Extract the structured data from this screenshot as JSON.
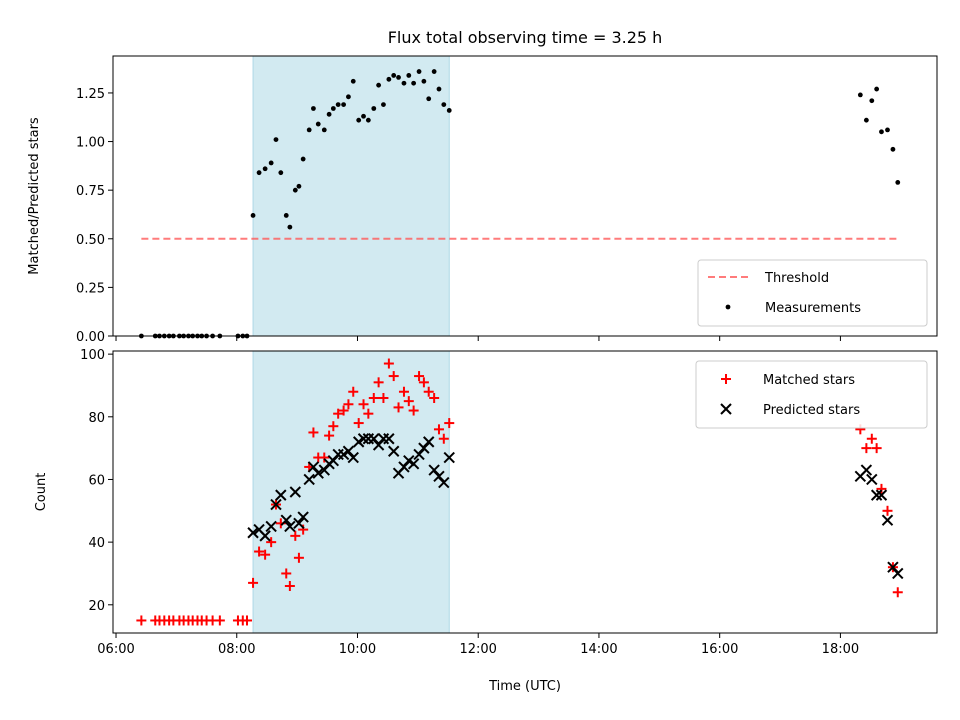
{
  "figure": {
    "title": "Flux total observing time = 3.25 h"
  },
  "colors": {
    "highlight": "#add8e6",
    "threshold": "#ff5a5a",
    "measurements": "#000000",
    "matched": "#ff0000",
    "predicted": "#000000"
  },
  "chart_data": [
    {
      "type": "scatter",
      "ylabel": "Matched/Predicted stars",
      "xlabel": "",
      "x_unit": "hours UTC",
      "xlim": [
        5.95,
        19.6
      ],
      "ylim": [
        0.0,
        1.44
      ],
      "yticks": [
        0.0,
        0.25,
        0.5,
        0.75,
        1.0,
        1.25
      ],
      "ytick_labels": [
        "0.00",
        "0.25",
        "0.50",
        "0.75",
        "1.00",
        "1.25"
      ],
      "highlight_span": [
        8.27,
        11.52
      ],
      "threshold": {
        "name": "Threshold",
        "value": 0.5,
        "x": [
          6.42,
          18.98
        ]
      },
      "legend": {
        "position": "bottom-right",
        "entries": [
          "Threshold",
          "Measurements"
        ]
      },
      "series": [
        {
          "name": "Measurements",
          "x": [
            6.42,
            6.65,
            6.72,
            6.8,
            6.88,
            6.95,
            7.05,
            7.12,
            7.2,
            7.27,
            7.35,
            7.42,
            7.5,
            7.6,
            7.72,
            8.02,
            8.1,
            8.17,
            8.27,
            8.37,
            8.47,
            8.57,
            8.65,
            8.73,
            8.82,
            8.88,
            8.97,
            9.03,
            9.1,
            9.2,
            9.27,
            9.35,
            9.45,
            9.53,
            9.6,
            9.68,
            9.77,
            9.85,
            9.93,
            10.02,
            10.1,
            10.18,
            10.27,
            10.35,
            10.43,
            10.52,
            10.6,
            10.68,
            10.77,
            10.85,
            10.93,
            11.02,
            11.1,
            11.18,
            11.27,
            11.35,
            11.43,
            11.52,
            18.33,
            18.43,
            18.52,
            18.6,
            18.68,
            18.78,
            18.87,
            18.95
          ],
          "y": [
            0,
            0,
            0,
            0,
            0,
            0,
            0,
            0,
            0,
            0,
            0,
            0,
            0,
            0,
            0,
            0,
            0,
            0,
            0.62,
            0.84,
            0.86,
            0.89,
            1.01,
            0.84,
            0.62,
            0.56,
            0.75,
            0.77,
            0.91,
            1.06,
            1.17,
            1.09,
            1.06,
            1.14,
            1.17,
            1.19,
            1.19,
            1.23,
            1.31,
            1.11,
            1.13,
            1.11,
            1.17,
            1.29,
            1.19,
            1.32,
            1.34,
            1.33,
            1.3,
            1.34,
            1.3,
            1.36,
            1.31,
            1.22,
            1.36,
            1.27,
            1.19,
            1.16,
            1.24,
            1.11,
            1.21,
            1.27,
            1.05,
            1.06,
            0.96,
            0.79
          ]
        }
      ]
    },
    {
      "type": "scatter",
      "ylabel": "Count",
      "xlabel": "Time (UTC)",
      "x_unit": "hours UTC",
      "xlim": [
        5.95,
        19.6
      ],
      "ylim": [
        11,
        101
      ],
      "yticks": [
        20,
        40,
        60,
        80,
        100
      ],
      "ytick_labels": [
        "20",
        "40",
        "60",
        "80",
        "100"
      ],
      "xticks": [
        6,
        8,
        10,
        12,
        14,
        16,
        18
      ],
      "xtick_labels": [
        "06:00",
        "08:00",
        "10:00",
        "12:00",
        "14:00",
        "16:00",
        "18:00"
      ],
      "highlight_span": [
        8.27,
        11.52
      ],
      "legend": {
        "position": "top-right",
        "entries": [
          "Matched stars",
          "Predicted stars"
        ]
      },
      "series": [
        {
          "name": "Matched stars",
          "marker": "plus",
          "x": [
            6.42,
            6.65,
            6.72,
            6.8,
            6.88,
            6.95,
            7.05,
            7.12,
            7.2,
            7.27,
            7.35,
            7.42,
            7.5,
            7.6,
            7.72,
            8.02,
            8.1,
            8.17,
            8.27,
            8.37,
            8.47,
            8.57,
            8.65,
            8.73,
            8.82,
            8.88,
            8.97,
            9.03,
            9.1,
            9.2,
            9.27,
            9.35,
            9.45,
            9.53,
            9.6,
            9.68,
            9.77,
            9.85,
            9.93,
            10.02,
            10.1,
            10.18,
            10.27,
            10.35,
            10.43,
            10.52,
            10.6,
            10.68,
            10.77,
            10.85,
            10.93,
            11.02,
            11.1,
            11.18,
            11.27,
            11.35,
            11.43,
            11.52,
            18.33,
            18.43,
            18.52,
            18.6,
            18.68,
            18.78,
            18.87,
            18.95
          ],
          "y": [
            15,
            15,
            15,
            15,
            15,
            15,
            15,
            15,
            15,
            15,
            15,
            15,
            15,
            15,
            15,
            15,
            15,
            15,
            27,
            37,
            36,
            40,
            52,
            46,
            30,
            26,
            42,
            35,
            44,
            64,
            75,
            67,
            67,
            74,
            77,
            81,
            82,
            84,
            88,
            78,
            84,
            81,
            86,
            91,
            86,
            97,
            93,
            83,
            88,
            85,
            82,
            93,
            91,
            88,
            86,
            76,
            73,
            78,
            76,
            70,
            73,
            70,
            57,
            50,
            32,
            24
          ]
        },
        {
          "name": "Predicted stars",
          "marker": "x",
          "x": [
            8.27,
            8.37,
            8.47,
            8.57,
            8.65,
            8.73,
            8.82,
            8.88,
            8.97,
            9.03,
            9.1,
            9.2,
            9.27,
            9.35,
            9.45,
            9.53,
            9.6,
            9.68,
            9.77,
            9.85,
            9.93,
            10.02,
            10.1,
            10.18,
            10.27,
            10.35,
            10.43,
            10.52,
            10.6,
            10.68,
            10.77,
            10.85,
            10.93,
            11.02,
            11.1,
            11.18,
            11.27,
            11.35,
            11.43,
            11.52,
            18.33,
            18.43,
            18.52,
            18.6,
            18.68,
            18.78,
            18.87,
            18.95
          ],
          "y": [
            43,
            44,
            42,
            45,
            52,
            55,
            47,
            45,
            56,
            46,
            48,
            60,
            64,
            62,
            63,
            65,
            66,
            68,
            68,
            69,
            67,
            72,
            73,
            73,
            73,
            71,
            73,
            73,
            69,
            62,
            64,
            66,
            65,
            68,
            70,
            72,
            63,
            61,
            59,
            67,
            61,
            63,
            60,
            55,
            55,
            47,
            32,
            30
          ]
        }
      ]
    }
  ]
}
